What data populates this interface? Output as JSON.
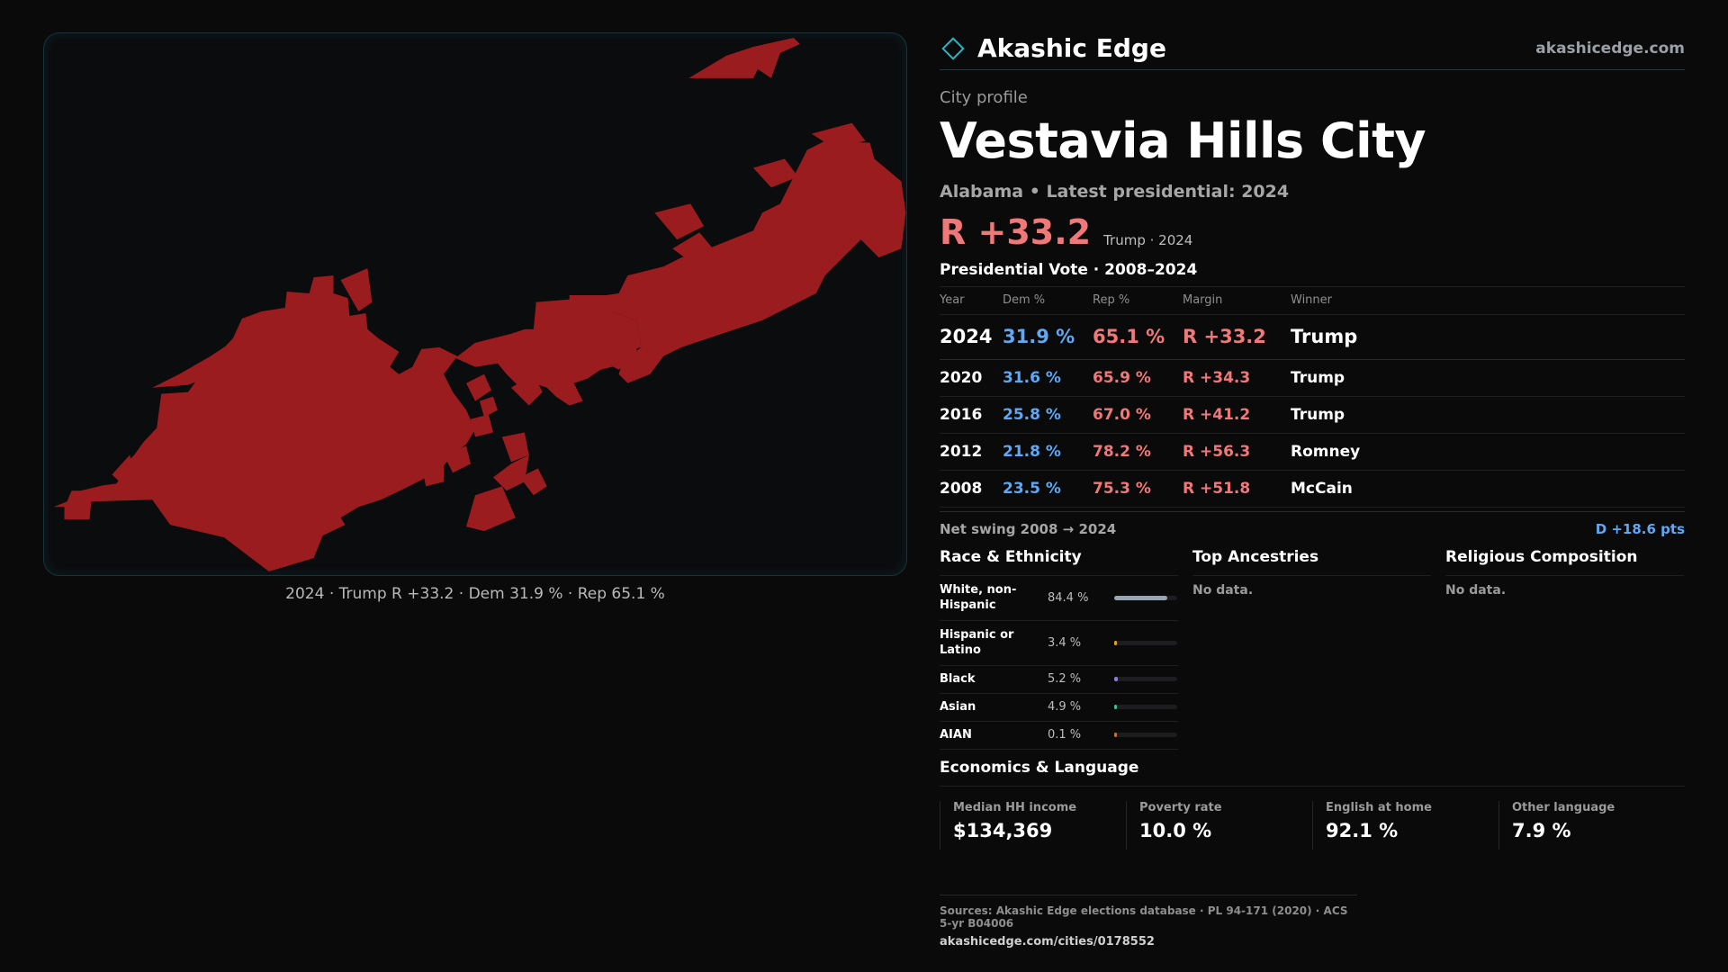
{
  "brand": {
    "name": "Akashic Edge",
    "site": "akashicedge.com"
  },
  "profile": {
    "eyebrow": "City profile",
    "title": "Vestavia Hills City",
    "subtitle": "Alabama • Latest presidential: 2024",
    "margin": "R +33.2",
    "margin_note": "Trump · 2024"
  },
  "map": {
    "caption": "2024 · Trump R +33.2 · Dem 31.9 % · Rep 65.1 %",
    "fill_color": "#9b1c1f"
  },
  "votes": {
    "title": "Presidential Vote · 2008–2024",
    "headers": {
      "year": "Year",
      "dem": "Dem %",
      "rep": "Rep %",
      "margin": "Margin",
      "winner": "Winner"
    },
    "rows": [
      {
        "year": "2024",
        "dem": "31.9 %",
        "rep": "65.1 %",
        "margin": "R +33.2",
        "winner": "Trump"
      },
      {
        "year": "2020",
        "dem": "31.6 %",
        "rep": "65.9 %",
        "margin": "R +34.3",
        "winner": "Trump"
      },
      {
        "year": "2016",
        "dem": "25.8 %",
        "rep": "67.0 %",
        "margin": "R +41.2",
        "winner": "Trump"
      },
      {
        "year": "2012",
        "dem": "21.8 %",
        "rep": "78.2 %",
        "margin": "R +56.3",
        "winner": "Romney"
      },
      {
        "year": "2008",
        "dem": "23.5 %",
        "rep": "75.3 %",
        "margin": "R +51.8",
        "winner": "McCain"
      }
    ],
    "swing_label": "Net swing 2008 → 2024",
    "swing_value": "D +18.6 pts"
  },
  "race": {
    "title": "Race & Ethnicity",
    "rows": [
      {
        "label": "White, non-Hispanic",
        "value": "84.4 %",
        "pct": 84.4,
        "color": "#9aa4b2"
      },
      {
        "label": "Hispanic or Latino",
        "value": "3.4 %",
        "pct": 3.4,
        "color": "#e0a030"
      },
      {
        "label": "Black",
        "value": "5.2 %",
        "pct": 5.2,
        "color": "#8a7fe0"
      },
      {
        "label": "Asian",
        "value": "4.9 %",
        "pct": 4.9,
        "color": "#3cc090"
      },
      {
        "label": "AIAN",
        "value": "0.1 %",
        "pct": 0.1,
        "color": "#c07050"
      }
    ]
  },
  "ancestries": {
    "title": "Top Ancestries",
    "empty": "No data."
  },
  "religion": {
    "title": "Religious Composition",
    "empty": "No data."
  },
  "economics": {
    "title": "Economics & Language",
    "cells": [
      {
        "label": "Median HH income",
        "value": "$134,369"
      },
      {
        "label": "Poverty rate",
        "value": "10.0 %"
      },
      {
        "label": "English at home",
        "value": "92.1 %"
      },
      {
        "label": "Other language",
        "value": "7.9 %"
      }
    ]
  },
  "footer": {
    "sources": "Sources: Akashic Edge elections database · PL 94-171 (2020) · ACS 5-yr B04006",
    "url": "akashicedge.com/cities/0178552"
  }
}
